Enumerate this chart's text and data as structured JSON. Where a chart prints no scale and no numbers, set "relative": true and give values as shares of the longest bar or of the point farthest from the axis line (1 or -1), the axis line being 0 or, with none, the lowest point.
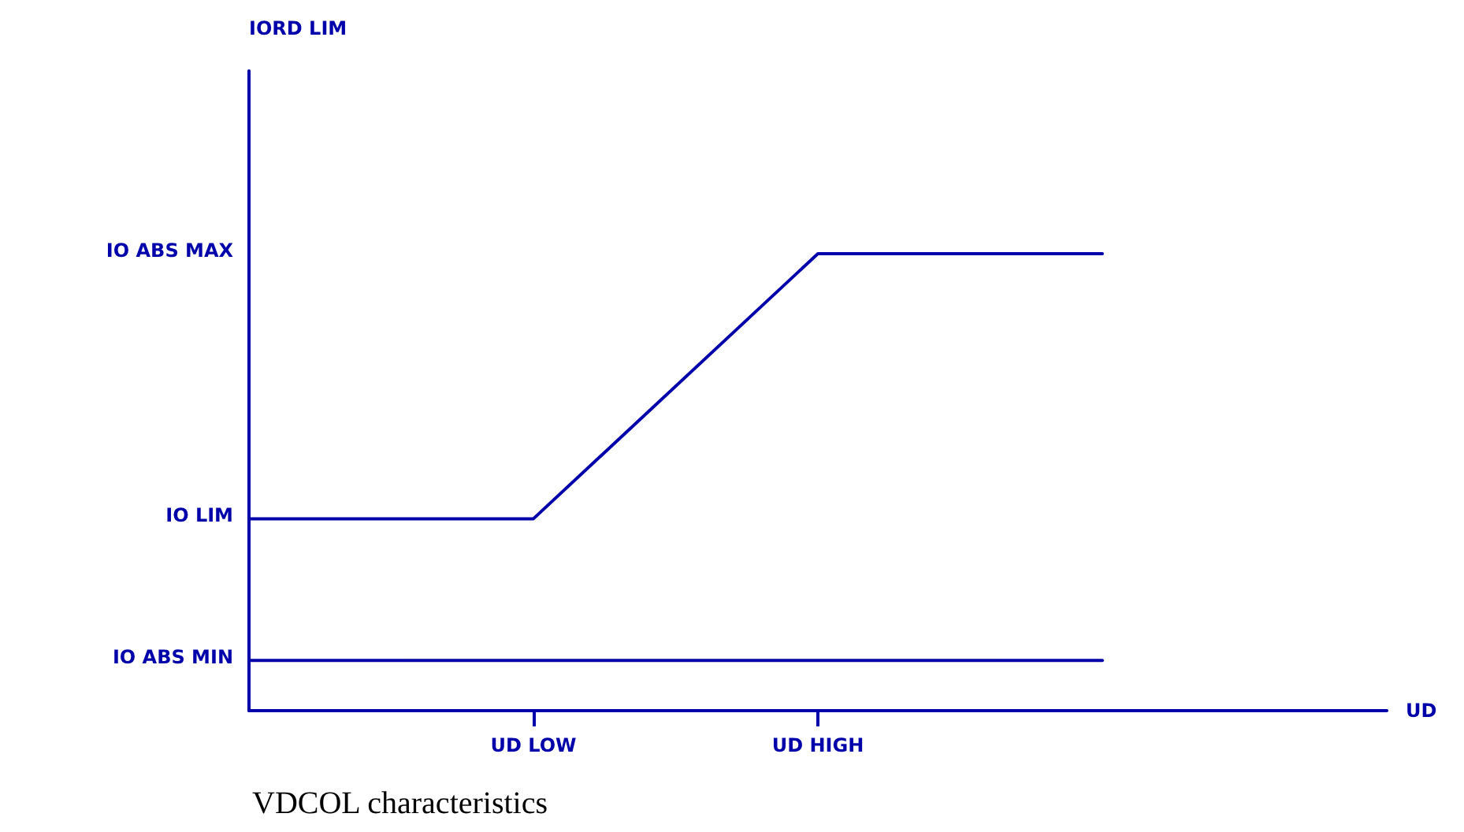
{
  "chart_data": {
    "type": "line",
    "xlabel": "UD",
    "relative": true,
    "categories": [
      null,
      "UD LOW",
      "UD HIGH",
      null,
      null
    ],
    "annotations": [
      "IO ABS MAX",
      "IO LIM",
      "IO ABS MIN",
      "IORD LIM",
      "VDCOL characteristics"
    ],
    "series": [
      {
        "color": "#0000aa",
        "values": [
          0.42,
          0.42,
          1,
          1,
          null
        ]
      },
      {
        "color": "#0000aa",
        "values": [
          0.11,
          0.11,
          0.11,
          0.11,
          null
        ]
      }
    ],
    "grid": false,
    "marker": "none",
    "line_style": "solid"
  }
}
